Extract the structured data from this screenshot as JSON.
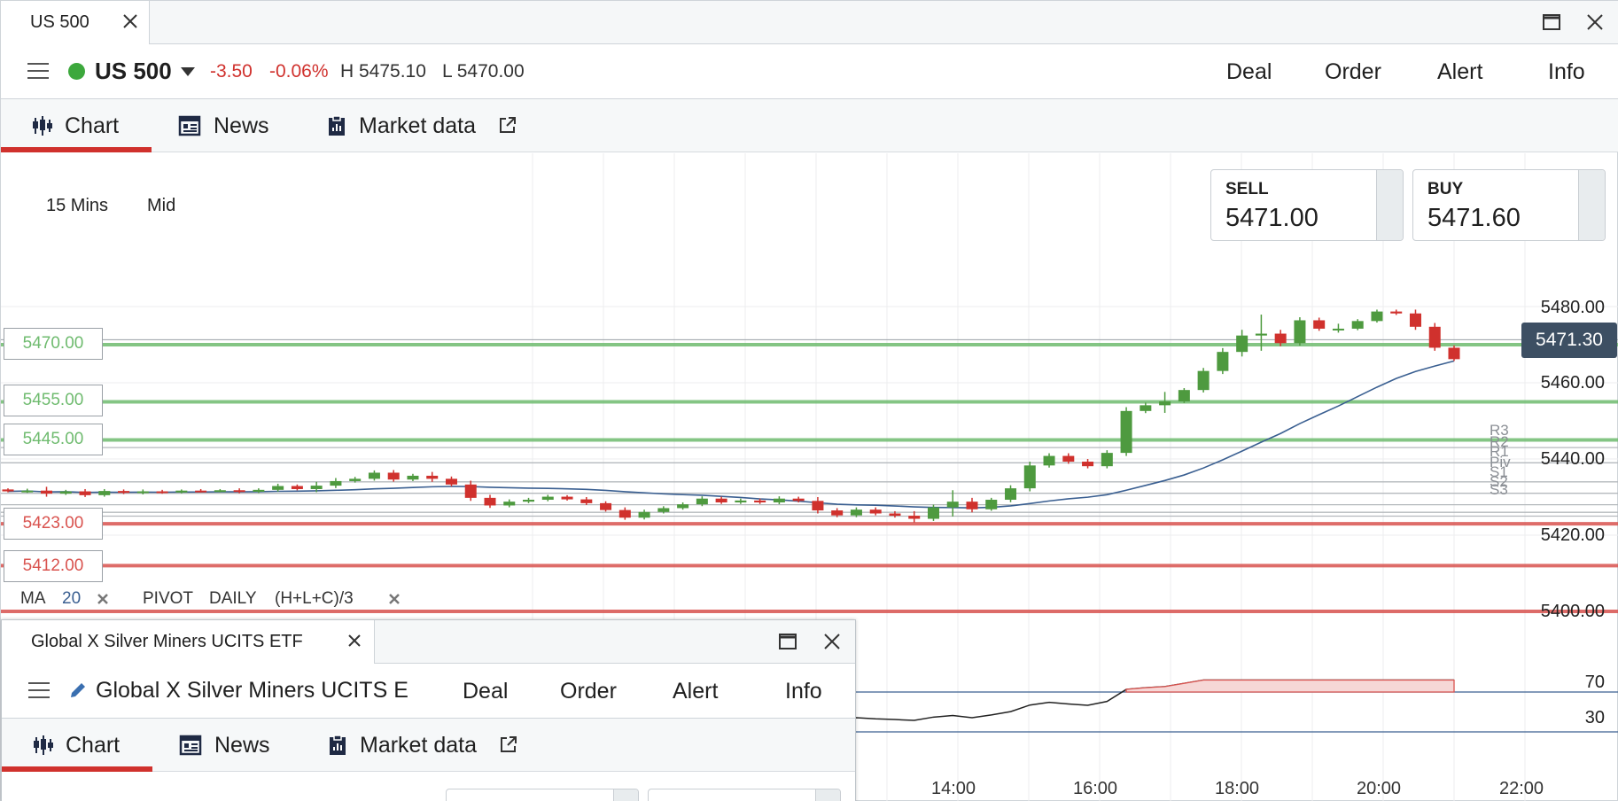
{
  "window": {
    "tab_title": "US 500"
  },
  "instrument": {
    "name": "US 500",
    "change": "-3.50",
    "change_pct": "-0.06%",
    "high": "H 5475.10",
    "low": "L 5470.00",
    "status_color": "#3ca83c"
  },
  "actions": {
    "deal": "Deal",
    "order": "Order",
    "alert": "Alert",
    "info": "Info"
  },
  "subtabs": {
    "chart": "Chart",
    "news": "News",
    "market_data": "Market data"
  },
  "chart_settings": {
    "interval": "15 Mins",
    "price_type": "Mid"
  },
  "quotes": {
    "sell_label": "SELL",
    "sell_value": "5471.00",
    "buy_label": "BUY",
    "buy_value": "5471.60"
  },
  "price_levels": [
    {
      "value": "5470.00",
      "color": "#6fbb6f"
    },
    {
      "value": "5455.00",
      "color": "#6fbb6f"
    },
    {
      "value": "5445.00",
      "color": "#6fbb6f"
    },
    {
      "value": "5423.00",
      "color": "#d9534f"
    },
    {
      "value": "5412.00",
      "color": "#d9534f"
    }
  ],
  "y_axis": [
    "5480.00",
    "5460.00",
    "5440.00",
    "5420.00",
    "5400.00"
  ],
  "current_price": "5471.30",
  "pivot_labels": [
    "R3",
    "R2",
    "R1",
    "Piv",
    "S1",
    "S2",
    "S3"
  ],
  "x_axis": [
    "14:00",
    "16:00",
    "18:00",
    "20:00",
    "22:00"
  ],
  "rsi_levels": [
    "70",
    "30"
  ],
  "indicators": {
    "ma_label": "MA",
    "ma_period": "20",
    "pivot_label": "PIVOT",
    "pivot_period": "DAILY",
    "pivot_formula": "(H+L+C)/3"
  },
  "sub_window": {
    "tab_title": "Global X Silver Miners UCITS ETF",
    "instrument_name": "Global X Silver Miners UCITS E",
    "actions": {
      "deal": "Deal",
      "order": "Order",
      "alert": "Alert",
      "info": "Info"
    },
    "subtabs": {
      "chart": "Chart",
      "news": "News",
      "market_data": "Market data"
    }
  },
  "colors": {
    "up": "#4e9a3f",
    "down": "#d0312d",
    "accent": "#d0312d",
    "ma_line": "#3a5f91"
  }
}
